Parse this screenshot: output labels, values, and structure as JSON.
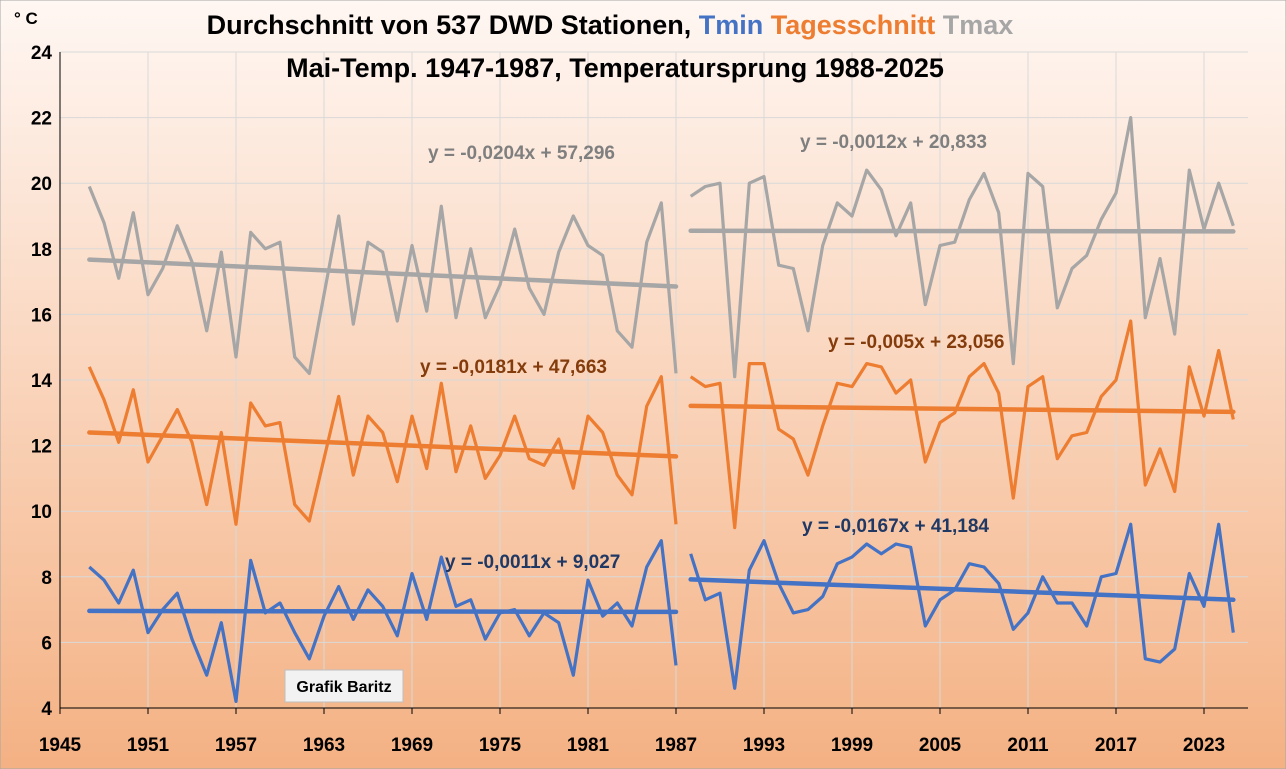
{
  "chart_data": {
    "type": "line",
    "title_part1": "Durchschnitt von 537 DWD Stationen, ",
    "title_tmin": "Tmin",
    "title_tages": "Tagesschnitt",
    "title_tmax": "Tmax",
    "subtitle": "Mai-Temp. 1947-1987, Temperatursprung 1988-2025",
    "ylabel": "° C",
    "xlim": [
      1945,
      2026
    ],
    "ylim": [
      4,
      24
    ],
    "x_ticks": [
      1945,
      1951,
      1957,
      1963,
      1969,
      1975,
      1981,
      1987,
      1993,
      1999,
      2005,
      2011,
      2017,
      2023
    ],
    "y_ticks": [
      4,
      6,
      8,
      10,
      12,
      14,
      16,
      18,
      20,
      22,
      24
    ],
    "grid": true,
    "watermark": "Grafik Baritz",
    "colors": {
      "tmax": "#A6A6A6",
      "tages": "#ED7D31",
      "tmin": "#4472C4",
      "eq_tmax": "#7F7F7F",
      "eq_tages": "#843C0C",
      "eq_tmin": "#203864",
      "bg_top": "#FFF7F3",
      "bg_bottom": "#F4B183"
    },
    "series": [
      {
        "key": "tmax",
        "segments": [
          {
            "x_start": 1947,
            "values": [
              19.9,
              18.8,
              17.1,
              19.1,
              16.6,
              17.4,
              18.7,
              17.6,
              15.5,
              17.9,
              14.7,
              18.5,
              18.0,
              18.2,
              14.7,
              14.2,
              16.6,
              19.0,
              15.7,
              18.2,
              17.9,
              15.8,
              18.1,
              16.1,
              19.3,
              15.9,
              18.0,
              15.9,
              16.9,
              18.6,
              16.8,
              16.0,
              17.9,
              19.0,
              18.1,
              17.8,
              15.5,
              15.0,
              18.2,
              19.4,
              14.2
            ]
          },
          {
            "x_start": 1988,
            "values": [
              19.6,
              19.9,
              20.0,
              14.1,
              20.0,
              20.2,
              17.5,
              17.4,
              15.5,
              18.1,
              19.4,
              19.0,
              20.4,
              19.8,
              18.4,
              19.4,
              16.3,
              18.1,
              18.2,
              19.5,
              20.3,
              19.1,
              14.5,
              20.3,
              19.9,
              16.2,
              17.4,
              17.8,
              18.9,
              19.7,
              22.0,
              15.9,
              17.7,
              15.4,
              20.4,
              18.6,
              20.0,
              18.7
            ]
          }
        ]
      },
      {
        "key": "tages",
        "segments": [
          {
            "x_start": 1947,
            "values": [
              14.4,
              13.4,
              12.1,
              13.7,
              11.5,
              12.3,
              13.1,
              12.1,
              10.2,
              12.4,
              9.6,
              13.3,
              12.6,
              12.7,
              10.2,
              9.7,
              11.6,
              13.5,
              11.1,
              12.9,
              12.4,
              10.9,
              12.9,
              11.3,
              13.9,
              11.2,
              12.6,
              11.0,
              11.7,
              12.9,
              11.6,
              11.4,
              12.2,
              10.7,
              12.9,
              12.4,
              11.1,
              10.5,
              13.2,
              14.1,
              9.6
            ]
          },
          {
            "x_start": 1988,
            "values": [
              14.1,
              13.8,
              13.9,
              9.5,
              14.5,
              14.5,
              12.5,
              12.2,
              11.1,
              12.6,
              13.9,
              13.8,
              14.5,
              14.4,
              13.6,
              14.0,
              11.5,
              12.7,
              13.0,
              14.1,
              14.5,
              13.6,
              10.4,
              13.8,
              14.1,
              11.6,
              12.3,
              12.4,
              13.5,
              14.0,
              15.8,
              10.8,
              11.9,
              10.6,
              14.4,
              12.9,
              14.9,
              12.8
            ]
          }
        ]
      },
      {
        "key": "tmin",
        "segments": [
          {
            "x_start": 1947,
            "values": [
              8.3,
              7.9,
              7.2,
              8.2,
              6.3,
              7.0,
              7.5,
              6.1,
              5.0,
              6.6,
              4.2,
              8.5,
              6.9,
              7.2,
              6.3,
              5.5,
              6.8,
              7.7,
              6.7,
              7.6,
              7.1,
              6.2,
              8.1,
              6.7,
              8.6,
              7.1,
              7.3,
              6.1,
              6.9,
              7.0,
              6.2,
              6.9,
              6.6,
              5.0,
              7.9,
              6.8,
              7.2,
              6.5,
              8.3,
              9.1,
              5.3
            ]
          },
          {
            "x_start": 1988,
            "values": [
              8.7,
              7.3,
              7.5,
              4.6,
              8.2,
              9.1,
              7.8,
              6.9,
              7.0,
              7.4,
              8.4,
              8.6,
              9.0,
              8.7,
              9.0,
              8.9,
              6.5,
              7.3,
              7.6,
              8.4,
              8.3,
              7.8,
              6.4,
              6.9,
              8.0,
              7.2,
              7.2,
              6.5,
              8.0,
              8.1,
              9.6,
              5.5,
              5.4,
              5.8,
              8.1,
              7.1,
              9.6,
              6.3
            ]
          }
        ]
      }
    ],
    "trends": [
      {
        "key": "tmax",
        "x0": 1947,
        "y0": 17.67,
        "x1": 1987,
        "y1": 16.85
      },
      {
        "key": "tmax",
        "x0": 1988,
        "y0": 18.55,
        "x1": 2025,
        "y1": 18.53
      },
      {
        "key": "tages",
        "x0": 1947,
        "y0": 12.4,
        "x1": 1987,
        "y1": 11.67
      },
      {
        "key": "tages",
        "x0": 1988,
        "y0": 13.21,
        "x1": 2025,
        "y1": 13.03
      },
      {
        "key": "tmin",
        "x0": 1947,
        "y0": 6.96,
        "x1": 1987,
        "y1": 6.93
      },
      {
        "key": "tmin",
        "x0": 1988,
        "y0": 7.92,
        "x1": 2025,
        "y1": 7.3
      }
    ],
    "equations": [
      {
        "key": "tmax",
        "text": "y = -0,0204x + 57,296"
      },
      {
        "key": "tmax",
        "text": "y = -0,0012x + 20,833"
      },
      {
        "key": "tages",
        "text": "y = -0,0181x + 47,663"
      },
      {
        "key": "tages",
        "text": "y = -0,005x + 23,056"
      },
      {
        "key": "tmin",
        "text": "y = -0,0011x + 9,027"
      },
      {
        "key": "tmin",
        "text": "y = -0,0167x + 41,184"
      }
    ]
  }
}
